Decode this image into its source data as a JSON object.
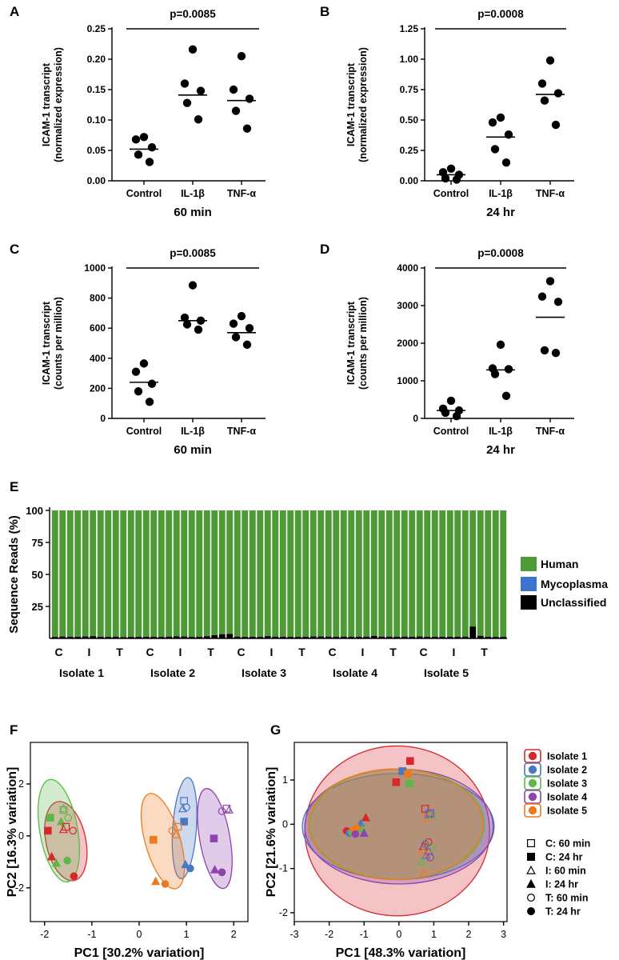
{
  "figure": {
    "panel_letters": [
      "A",
      "B",
      "C",
      "D",
      "E",
      "F",
      "G"
    ]
  },
  "chart_data": [
    {
      "id": "A",
      "type": "scatter",
      "categories": [
        "Control",
        "IL-1β",
        "TNF-α"
      ],
      "xlabel": "60 min",
      "ylabel": [
        "ICAM-1 transcript",
        "(normalized expression)"
      ],
      "ylim": [
        0,
        0.25
      ],
      "yticks": [
        "0.00",
        "0.05",
        "0.10",
        "0.15",
        "0.20",
        "0.25"
      ],
      "pvalue": "p=0.0085",
      "points": [
        [
          0.072,
          0.068,
          0.055,
          0.043,
          0.031
        ],
        [
          0.216,
          0.16,
          0.148,
          0.128,
          0.101
        ],
        [
          0.205,
          0.15,
          0.135,
          0.115,
          0.086
        ]
      ],
      "means": [
        0.052,
        0.141,
        0.132
      ]
    },
    {
      "id": "B",
      "type": "scatter",
      "categories": [
        "Control",
        "IL-1β",
        "TNF-α"
      ],
      "xlabel": "24 hr",
      "ylabel": [
        "ICAM-1 transcript",
        "(normalized expression)"
      ],
      "ylim": [
        0,
        1.25
      ],
      "yticks": [
        "0.00",
        "0.25",
        "0.50",
        "0.75",
        "1.00",
        "1.25"
      ],
      "pvalue": "p=0.0008",
      "points": [
        [
          0.1,
          0.07,
          0.05,
          0.02,
          0.01
        ],
        [
          0.52,
          0.48,
          0.38,
          0.26,
          0.15
        ],
        [
          0.99,
          0.8,
          0.72,
          0.66,
          0.46
        ]
      ],
      "means": [
        0.05,
        0.36,
        0.71
      ]
    },
    {
      "id": "C",
      "type": "scatter",
      "categories": [
        "Control",
        "IL-1β",
        "TNF-α"
      ],
      "xlabel": "60 min",
      "ylabel": [
        "ICAM-1 transcript",
        "(counts per million)"
      ],
      "ylim": [
        0,
        1000
      ],
      "yticks": [
        "0",
        "200",
        "400",
        "600",
        "800",
        "1000"
      ],
      "pvalue": "p=0.0085",
      "points": [
        [
          365,
          310,
          230,
          180,
          110
        ],
        [
          885,
          670,
          650,
          625,
          590
        ],
        [
          680,
          630,
          600,
          540,
          490
        ]
      ],
      "means": [
        240,
        650,
        570
      ]
    },
    {
      "id": "D",
      "type": "scatter",
      "categories": [
        "Control",
        "IL-1β",
        "TNF-α"
      ],
      "xlabel": "24 hr",
      "ylabel": [
        "ICAM-1 transcript",
        "(counts per million)"
      ],
      "ylim": [
        0,
        4000
      ],
      "yticks": [
        "0",
        "1000",
        "2000",
        "3000",
        "4000"
      ],
      "pvalue": "p=0.0008",
      "points": [
        [
          470,
          260,
          210,
          150,
          60
        ],
        [
          1960,
          1330,
          1310,
          1180,
          600
        ],
        [
          3650,
          3240,
          3100,
          1810,
          1740
        ]
      ],
      "means": [
        210,
        1290,
        2690
      ]
    },
    {
      "id": "E",
      "type": "bar",
      "title": "",
      "ylabel": "Sequence Reads (%)",
      "ylim": [
        0,
        100
      ],
      "yticks": [
        "25",
        "50",
        "75",
        "100"
      ],
      "bar_labels": [
        "C",
        "I",
        "T",
        "C",
        "I",
        "T",
        "C",
        "I",
        "T",
        "C",
        "I",
        "T",
        "C",
        "I",
        "T"
      ],
      "groups": [
        "Isolate 1",
        "Isolate 2",
        "Isolate 3",
        "Isolate 4",
        "Isolate 5"
      ],
      "bars_per_group": 6,
      "series": [
        {
          "name": "Human",
          "color": "#4e9a37"
        },
        {
          "name": "Mycoplasma",
          "color": "#3a74d3"
        },
        {
          "name": "Unclassified",
          "color": "#000000"
        }
      ],
      "unclassified_values": [
        1.2,
        1.5,
        1.3,
        1.3,
        1.5,
        1.8,
        1.3,
        1.2,
        1.4,
        1.0,
        1.2,
        1.2,
        1.3,
        1.3,
        1.2,
        1.4,
        1.6,
        1.5,
        1.2,
        1.3,
        1.7,
        2.5,
        3.3,
        3.5,
        1.4,
        1.2,
        1.3,
        1.2,
        1.8,
        1.4,
        1.3,
        1.2,
        1.2,
        1.3,
        1.5,
        1.5,
        1.4,
        1.3,
        1.4,
        1.3,
        1.3,
        1.4,
        2.0,
        1.4,
        1.4,
        1.3,
        1.4,
        1.3,
        1.5,
        1.3,
        1.3,
        1.3,
        1.3,
        1.3,
        1.4,
        9.3,
        2.0,
        1.3,
        1.2,
        1.2
      ]
    },
    {
      "id": "F",
      "type": "scatter",
      "xlabel": "PC1 [30.2% variation]",
      "ylabel": "PC2 [16.3% variation]",
      "xlim": [
        -2.3,
        2.3
      ],
      "ylim": [
        -3.3,
        3.6
      ],
      "xticks": [
        -2,
        -1,
        0,
        1,
        2
      ],
      "yticks": [
        -2,
        0,
        2
      ],
      "isolate_colors": [
        "#d7282e",
        "#4a77c2",
        "#5db848",
        "#8e44ad",
        "#ee7a20"
      ],
      "ellipses": [
        {
          "isolate": 0,
          "cx": -1.55,
          "cy": -0.2,
          "rx": 0.42,
          "ry": 1.55,
          "angle": -12
        },
        {
          "isolate": 2,
          "cx": -1.7,
          "cy": 0.2,
          "rx": 0.4,
          "ry": 2.0,
          "angle": -10
        },
        {
          "isolate": 1,
          "cx": 0.96,
          "cy": 0.3,
          "rx": 0.25,
          "ry": 1.95,
          "angle": 4
        },
        {
          "isolate": 4,
          "cx": 0.5,
          "cy": -0.2,
          "rx": 0.37,
          "ry": 1.9,
          "angle": -16
        },
        {
          "isolate": 3,
          "cx": 1.6,
          "cy": -0.1,
          "rx": 0.32,
          "ry": 1.95,
          "angle": -10
        }
      ],
      "points": [
        {
          "x": -1.6,
          "y": 1.0,
          "i": 2,
          "s": "square-open"
        },
        {
          "x": -1.88,
          "y": 0.7,
          "i": 2,
          "s": "square"
        },
        {
          "x": -1.6,
          "y": 1.05,
          "i": 2,
          "s": "triangle-open"
        },
        {
          "x": -1.65,
          "y": 0.55,
          "i": 2,
          "s": "triangle"
        },
        {
          "x": -1.5,
          "y": 0.7,
          "i": 2,
          "s": "circle-open"
        },
        {
          "x": -1.52,
          "y": -0.95,
          "i": 2,
          "s": "circle"
        },
        {
          "x": -1.55,
          "y": 0.35,
          "i": 0,
          "s": "square-open"
        },
        {
          "x": -1.93,
          "y": 0.2,
          "i": 0,
          "s": "square"
        },
        {
          "x": -1.6,
          "y": 0.25,
          "i": 0,
          "s": "triangle-open"
        },
        {
          "x": -1.85,
          "y": -0.8,
          "i": 0,
          "s": "triangle"
        },
        {
          "x": -1.4,
          "y": 0.2,
          "i": 0,
          "s": "circle-open"
        },
        {
          "x": -1.38,
          "y": -1.55,
          "i": 0,
          "s": "circle"
        },
        {
          "x": -1.75,
          "y": -1.05,
          "i": 2,
          "s": "triangle"
        },
        {
          "x": 0.95,
          "y": 1.35,
          "i": 1,
          "s": "square-open"
        },
        {
          "x": 0.95,
          "y": 0.55,
          "i": 1,
          "s": "square"
        },
        {
          "x": 0.92,
          "y": 1.05,
          "i": 1,
          "s": "triangle-open"
        },
        {
          "x": 0.98,
          "y": -1.1,
          "i": 1,
          "s": "triangle"
        },
        {
          "x": 1.0,
          "y": 1.1,
          "i": 1,
          "s": "circle-open"
        },
        {
          "x": 1.08,
          "y": -1.25,
          "i": 1,
          "s": "circle"
        },
        {
          "x": 0.82,
          "y": 0.35,
          "i": 4,
          "s": "square-open"
        },
        {
          "x": 0.3,
          "y": -0.15,
          "i": 4,
          "s": "square"
        },
        {
          "x": 0.78,
          "y": 0.05,
          "i": 4,
          "s": "triangle-open"
        },
        {
          "x": 0.35,
          "y": -1.75,
          "i": 4,
          "s": "triangle"
        },
        {
          "x": 0.7,
          "y": 0.2,
          "i": 4,
          "s": "circle-open"
        },
        {
          "x": 0.55,
          "y": -1.85,
          "i": 4,
          "s": "circle"
        },
        {
          "x": 1.85,
          "y": 1.05,
          "i": 3,
          "s": "square-open"
        },
        {
          "x": 1.58,
          "y": -0.1,
          "i": 3,
          "s": "square"
        },
        {
          "x": 1.9,
          "y": 1.0,
          "i": 3,
          "s": "triangle-open"
        },
        {
          "x": 1.6,
          "y": -1.3,
          "i": 3,
          "s": "triangle"
        },
        {
          "x": 1.75,
          "y": 0.95,
          "i": 3,
          "s": "circle-open"
        },
        {
          "x": 1.75,
          "y": -1.4,
          "i": 3,
          "s": "circle"
        }
      ]
    },
    {
      "id": "G",
      "type": "scatter",
      "xlabel": "PC1 [48.3% variation]",
      "ylabel": "PC2 [21.6% variation]",
      "xlim": [
        -3,
        3.1
      ],
      "ylim": [
        -2.2,
        1.85
      ],
      "xticks": [
        -3,
        -2,
        -1,
        0,
        1,
        2,
        3
      ],
      "yticks": [
        -2,
        -1,
        0,
        1
      ],
      "isolate_colors": [
        "#d7282e",
        "#4a77c2",
        "#5db848",
        "#8e44ad",
        "#ee7a20"
      ],
      "ellipses": [
        {
          "isolate": 0,
          "cx": -0.05,
          "cy": -0.15,
          "rx": 2.65,
          "ry": 1.92,
          "angle": 0
        },
        {
          "isolate": 1,
          "cx": -0.02,
          "cy": -0.05,
          "rx": 2.75,
          "ry": 1.2,
          "angle": 0
        },
        {
          "isolate": 3,
          "cx": 0.0,
          "cy": -0.05,
          "rx": 2.7,
          "ry": 1.3,
          "angle": 0
        },
        {
          "isolate": 2,
          "cx": -0.05,
          "cy": 0.0,
          "rx": 2.5,
          "ry": 1.25,
          "angle": 0
        },
        {
          "isolate": 4,
          "cx": -0.1,
          "cy": 0.0,
          "rx": 2.5,
          "ry": 1.25,
          "angle": 0
        }
      ],
      "points": [
        {
          "x": 0.32,
          "y": 1.43,
          "i": 0,
          "s": "square"
        },
        {
          "x": 0.1,
          "y": 1.2,
          "i": 1,
          "s": "square"
        },
        {
          "x": 0.25,
          "y": 1.13,
          "i": 4,
          "s": "square"
        },
        {
          "x": -0.08,
          "y": 0.95,
          "i": 0,
          "s": "square"
        },
        {
          "x": 0.3,
          "y": 0.92,
          "i": 2,
          "s": "square"
        },
        {
          "x": 0.75,
          "y": 0.35,
          "i": 0,
          "s": "square-open"
        },
        {
          "x": 0.85,
          "y": 0.22,
          "i": 1,
          "s": "square-open"
        },
        {
          "x": 0.95,
          "y": 0.2,
          "i": 2,
          "s": "square-open"
        },
        {
          "x": 0.8,
          "y": 0.15,
          "i": 4,
          "s": "square-open"
        },
        {
          "x": 0.9,
          "y": 0.25,
          "i": 3,
          "s": "square-open"
        },
        {
          "x": -0.95,
          "y": 0.15,
          "i": 0,
          "s": "triangle"
        },
        {
          "x": -1.1,
          "y": 0.02,
          "i": 1,
          "s": "triangle"
        },
        {
          "x": -1.05,
          "y": -0.1,
          "i": 2,
          "s": "triangle"
        },
        {
          "x": -1.2,
          "y": -0.05,
          "i": 4,
          "s": "triangle"
        },
        {
          "x": -1.0,
          "y": -0.2,
          "i": 3,
          "s": "triangle"
        },
        {
          "x": -1.5,
          "y": -0.15,
          "i": 0,
          "s": "circle"
        },
        {
          "x": -1.42,
          "y": -0.2,
          "i": 1,
          "s": "circle"
        },
        {
          "x": -1.35,
          "y": -0.18,
          "i": 2,
          "s": "circle"
        },
        {
          "x": -1.3,
          "y": -0.12,
          "i": 4,
          "s": "circle"
        },
        {
          "x": -1.25,
          "y": -0.22,
          "i": 3,
          "s": "circle"
        },
        {
          "x": 0.7,
          "y": -0.5,
          "i": 0,
          "s": "triangle-open"
        },
        {
          "x": 0.78,
          "y": -0.7,
          "i": 1,
          "s": "triangle-open"
        },
        {
          "x": 0.65,
          "y": -0.85,
          "i": 2,
          "s": "triangle-open"
        },
        {
          "x": 0.72,
          "y": -1.1,
          "i": 4,
          "s": "triangle-open"
        },
        {
          "x": 0.85,
          "y": -0.6,
          "i": 3,
          "s": "triangle-open"
        },
        {
          "x": 0.85,
          "y": -0.4,
          "i": 0,
          "s": "circle-open"
        },
        {
          "x": 0.75,
          "y": -0.45,
          "i": 1,
          "s": "circle-open"
        },
        {
          "x": 0.95,
          "y": -0.55,
          "i": 2,
          "s": "circle-open"
        },
        {
          "x": 0.7,
          "y": -0.65,
          "i": 4,
          "s": "circle-open"
        },
        {
          "x": 0.9,
          "y": -0.75,
          "i": 3,
          "s": "circle-open"
        }
      ],
      "legend_isolates": [
        "Isolate 1",
        "Isolate 2",
        "Isolate 3",
        "Isolate 4",
        "Isolate 5"
      ],
      "legend_shapes": [
        {
          "label": "C: 60 min",
          "s": "square-open"
        },
        {
          "label": "C: 24 hr",
          "s": "square"
        },
        {
          "label": "I: 60 min",
          "s": "triangle-open"
        },
        {
          "label": "I: 24 hr",
          "s": "triangle"
        },
        {
          "label": "T: 60 min",
          "s": "circle-open"
        },
        {
          "label": "T: 24 hr",
          "s": "circle"
        }
      ]
    }
  ]
}
